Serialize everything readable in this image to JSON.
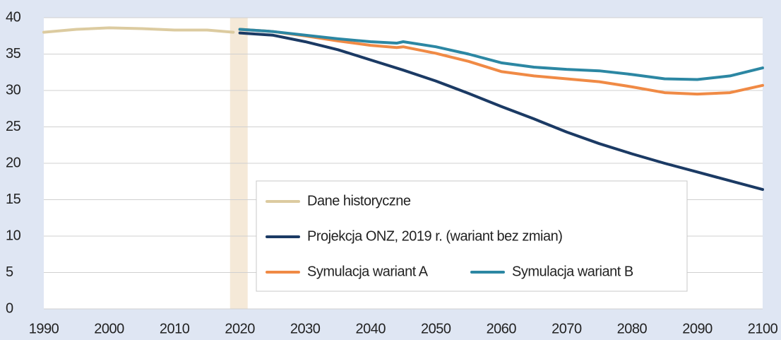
{
  "chart_data": {
    "type": "line",
    "xlim": [
      1990,
      2100
    ],
    "xticks": [
      1990,
      2000,
      2010,
      2020,
      2030,
      2040,
      2050,
      2060,
      2070,
      2080,
      2090,
      2100
    ],
    "ylim": [
      0,
      40
    ],
    "yticks": [
      0,
      5,
      10,
      15,
      20,
      25,
      30,
      35,
      40
    ],
    "grid": true,
    "shaded_x": [
      2018.5,
      2021.2
    ],
    "shade_color": "#f5e9d8",
    "series": [
      {
        "name": "Dane historyczne",
        "color": "#dccba0",
        "x": [
          1990,
          1995,
          2000,
          2005,
          2010,
          2015,
          2019
        ],
        "values": [
          38.0,
          38.4,
          38.6,
          38.5,
          38.3,
          38.3,
          38.0
        ]
      },
      {
        "name": "Projekcja ONZ, 2019 r. (wariant bez zmian)",
        "color": "#1b3a64",
        "x": [
          2020,
          2025,
          2030,
          2035,
          2040,
          2045,
          2050,
          2055,
          2060,
          2065,
          2070,
          2075,
          2080,
          2085,
          2090,
          2095,
          2100
        ],
        "values": [
          37.9,
          37.6,
          36.7,
          35.6,
          34.2,
          32.8,
          31.3,
          29.6,
          27.8,
          26.1,
          24.3,
          22.7,
          21.3,
          20.0,
          18.8,
          17.6,
          16.4
        ]
      },
      {
        "name": "Symulacja wariant A",
        "color": "#f08a45",
        "x": [
          2020,
          2025,
          2030,
          2035,
          2040,
          2044,
          2045,
          2050,
          2055,
          2060,
          2065,
          2070,
          2075,
          2080,
          2085,
          2090,
          2095,
          2100
        ],
        "values": [
          38.4,
          38.1,
          37.5,
          36.8,
          36.2,
          35.9,
          36.0,
          35.1,
          34.0,
          32.6,
          32.0,
          31.6,
          31.2,
          30.5,
          29.7,
          29.5,
          29.7,
          30.7
        ]
      },
      {
        "name": "Symulacja wariant B",
        "color": "#2c87a3",
        "x": [
          2020,
          2025,
          2030,
          2035,
          2040,
          2044,
          2045,
          2050,
          2055,
          2060,
          2065,
          2070,
          2075,
          2080,
          2085,
          2090,
          2095,
          2100
        ],
        "values": [
          38.4,
          38.1,
          37.6,
          37.1,
          36.7,
          36.5,
          36.7,
          36.0,
          35.0,
          33.8,
          33.2,
          32.9,
          32.7,
          32.2,
          31.6,
          31.5,
          32.0,
          33.1
        ]
      }
    ]
  }
}
